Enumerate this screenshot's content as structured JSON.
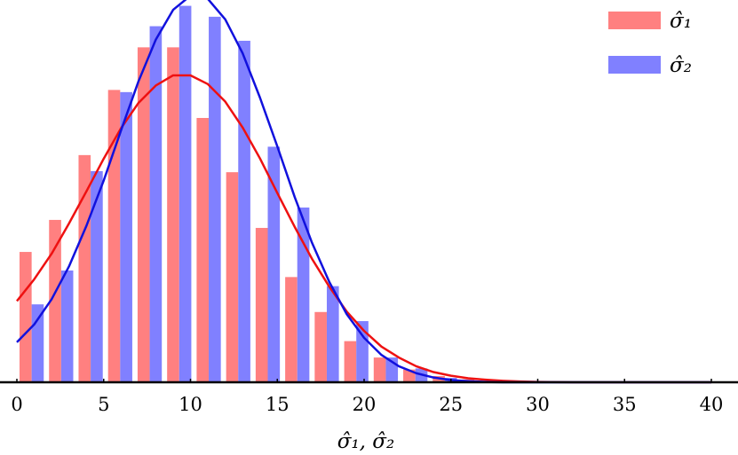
{
  "chart_data": {
    "type": "bar",
    "xlabel": "σ̂₁, σ̂₂",
    "ylabel": "",
    "xlim": [
      0,
      40
    ],
    "xticks": [
      0,
      5,
      10,
      15,
      20,
      25,
      30,
      35,
      40
    ],
    "ylim": [
      0,
      0.105
    ],
    "y_axis_visible": false,
    "grid": false,
    "legend_position": "top-right",
    "bin_centers": [
      0.85,
      2.55,
      4.25,
      5.95,
      7.65,
      9.35,
      11.05,
      12.75,
      14.45,
      16.15,
      17.85,
      19.55,
      21.25,
      22.95,
      24.65,
      26.35,
      28.05,
      29.75,
      31.45,
      33.15,
      34.85
    ],
    "series": [
      {
        "name": "σ̂₁",
        "bar_color": "#ff8080",
        "line_color": "#ee1111",
        "values": [
          0.0358,
          0.0446,
          0.0624,
          0.0803,
          0.092,
          0.092,
          0.0726,
          0.0577,
          0.0424,
          0.0289,
          0.0193,
          0.0113,
          0.0068,
          0.0035,
          0.0017,
          0.0008,
          0.0004,
          0.0002,
          0.0001,
          0.0,
          0.0
        ],
        "curve": [
          [
            0,
            0.0223
          ],
          [
            1,
            0.0283
          ],
          [
            2,
            0.0353
          ],
          [
            3,
            0.0436
          ],
          [
            4,
            0.0524
          ],
          [
            5,
            0.0614
          ],
          [
            6,
            0.0698
          ],
          [
            7,
            0.0767
          ],
          [
            8,
            0.0815
          ],
          [
            9,
            0.0843
          ],
          [
            10,
            0.0843
          ],
          [
            11,
            0.0819
          ],
          [
            12,
            0.0771
          ],
          [
            13,
            0.07
          ],
          [
            14,
            0.0615
          ],
          [
            15,
            0.052
          ],
          [
            16,
            0.0427
          ],
          [
            17,
            0.0339
          ],
          [
            18,
            0.0262
          ],
          [
            19,
            0.0194
          ],
          [
            20,
            0.0141
          ],
          [
            21,
            0.0098
          ],
          [
            22,
            0.0068
          ],
          [
            23,
            0.0044
          ],
          [
            24,
            0.0028
          ],
          [
            25,
            0.0018
          ],
          [
            26,
            0.0011
          ],
          [
            27,
            0.0007
          ],
          [
            28,
            0.0004
          ],
          [
            29,
            0.0002
          ],
          [
            30,
            0.0001
          ],
          [
            32,
            0.0
          ],
          [
            40,
            0.0
          ]
        ]
      },
      {
        "name": "σ̂₂",
        "bar_color": "#8080ff",
        "line_color": "#1111dd",
        "values": [
          0.0214,
          0.0307,
          0.058,
          0.0797,
          0.0978,
          0.1034,
          0.1004,
          0.0938,
          0.0647,
          0.048,
          0.0264,
          0.0168,
          0.0068,
          0.0038,
          0.0012,
          0.0004,
          0.0001,
          0.0,
          0.0,
          0.0,
          0.0
        ],
        "curve": [
          [
            0,
            0.011
          ],
          [
            1,
            0.0159
          ],
          [
            2,
            0.0228
          ],
          [
            3,
            0.0318
          ],
          [
            4,
            0.0429
          ],
          [
            5,
            0.0554
          ],
          [
            6,
            0.0692
          ],
          [
            7,
            0.0826
          ],
          [
            8,
            0.0941
          ],
          [
            9,
            0.1023
          ],
          [
            10,
            0.1062
          ],
          [
            11,
            0.1053
          ],
          [
            12,
            0.0997
          ],
          [
            13,
            0.0904
          ],
          [
            14,
            0.0782
          ],
          [
            15,
            0.0648
          ],
          [
            16,
            0.0509
          ],
          [
            17,
            0.0383
          ],
          [
            18,
            0.0275
          ],
          [
            19,
            0.0187
          ],
          [
            20,
            0.0122
          ],
          [
            21,
            0.0075
          ],
          [
            22,
            0.0044
          ],
          [
            23,
            0.0025
          ],
          [
            24,
            0.0013
          ],
          [
            25,
            0.0006
          ],
          [
            26,
            0.0003
          ],
          [
            27,
            0.0001
          ],
          [
            28,
            0.0
          ],
          [
            40,
            0.0
          ]
        ]
      }
    ]
  }
}
